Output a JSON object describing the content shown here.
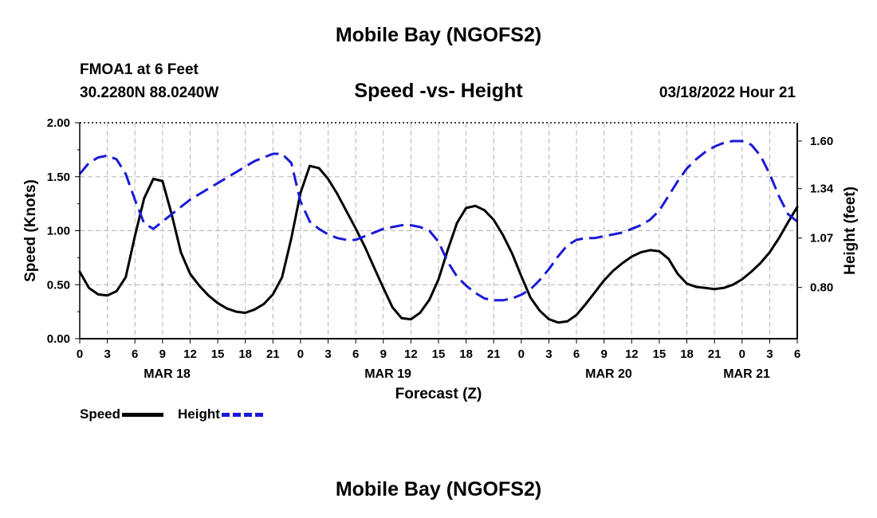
{
  "header": {
    "title": "Mobile Bay (NGOFS2)",
    "station": "FMOA1 at 6 Feet",
    "coords": "30.2280N  88.0240W",
    "subtitle": "Speed -vs- Height",
    "datetime": "03/18/2022 Hour 21"
  },
  "footer": {
    "title": "Mobile Bay (NGOFS2)"
  },
  "legend": {
    "speed_label": "Speed",
    "height_label": "Height",
    "speed_color": "#000000",
    "height_color": "#1a1ad6"
  },
  "chart_data": {
    "type": "line",
    "xlabel": "Forecast (Z)",
    "ylabel_left": "Speed (Knots)",
    "ylabel_right": "Height (feet)",
    "x_range_hours": [
      0,
      78
    ],
    "x_ticks": [
      "0",
      "3",
      "6",
      "9",
      "12",
      "15",
      "18",
      "21",
      "0",
      "3",
      "6",
      "9",
      "12",
      "15",
      "18",
      "21",
      "0",
      "3",
      "6",
      "9",
      "12",
      "15",
      "18",
      "21",
      "0",
      "3",
      "6"
    ],
    "day_labels": [
      {
        "label": "MAR 18",
        "hour": 9.5
      },
      {
        "label": "MAR 19",
        "hour": 33.5
      },
      {
        "label": "MAR 20",
        "hour": 57.5
      },
      {
        "label": "MAR 21",
        "hour": 72.5
      }
    ],
    "ylim_left": [
      0,
      2.0
    ],
    "y_ticks_left": [
      "0.00",
      "0.50",
      "1.00",
      "1.50",
      "2.00"
    ],
    "ylim_right": [
      0.52,
      1.7
    ],
    "y_ticks_right": [
      {
        "value": 0.8,
        "label": "0.80"
      },
      {
        "value": 1.07,
        "label": "1.07"
      },
      {
        "value": 1.34,
        "label": "1.34"
      },
      {
        "value": 1.6,
        "label": "1.60"
      }
    ],
    "grid": true,
    "series": [
      {
        "name": "Speed",
        "axis": "left",
        "color": "#000000",
        "dash": "solid",
        "x": [
          0,
          1,
          2,
          3,
          4,
          5,
          6,
          7,
          8,
          9,
          10,
          11,
          12,
          13,
          14,
          15,
          16,
          17,
          18,
          19,
          20,
          21,
          22,
          23,
          24,
          25,
          26,
          27,
          28,
          29,
          30,
          31,
          32,
          33,
          34,
          35,
          36,
          37,
          38,
          39,
          40,
          41,
          42,
          43,
          44,
          45,
          46,
          47,
          48,
          49,
          50,
          51,
          52,
          53,
          54,
          55,
          56,
          57,
          58,
          59,
          60,
          61,
          62,
          63,
          64,
          65,
          66,
          67,
          68,
          69,
          70,
          71,
          72,
          73,
          74,
          75,
          76,
          77,
          78
        ],
        "values": [
          0.62,
          0.47,
          0.41,
          0.4,
          0.44,
          0.57,
          0.95,
          1.3,
          1.48,
          1.46,
          1.15,
          0.8,
          0.6,
          0.49,
          0.4,
          0.33,
          0.28,
          0.25,
          0.24,
          0.27,
          0.32,
          0.41,
          0.57,
          0.93,
          1.35,
          1.6,
          1.58,
          1.48,
          1.34,
          1.18,
          1.02,
          0.85,
          0.66,
          0.47,
          0.29,
          0.19,
          0.18,
          0.24,
          0.36,
          0.55,
          0.82,
          1.07,
          1.21,
          1.23,
          1.19,
          1.1,
          0.96,
          0.79,
          0.58,
          0.38,
          0.26,
          0.18,
          0.15,
          0.16,
          0.22,
          0.32,
          0.43,
          0.54,
          0.63,
          0.7,
          0.76,
          0.8,
          0.82,
          0.81,
          0.74,
          0.6,
          0.51,
          0.48,
          0.47,
          0.46,
          0.47,
          0.5,
          0.55,
          0.62,
          0.7,
          0.8,
          0.93,
          1.08,
          1.22
        ]
      },
      {
        "name": "Height",
        "axis": "right",
        "color": "#1a1ad6",
        "dash": "dashed",
        "x": [
          0,
          1,
          2,
          3,
          4,
          5,
          6,
          7,
          8,
          9,
          10,
          11,
          12,
          13,
          14,
          15,
          16,
          17,
          18,
          19,
          20,
          21,
          22,
          23,
          24,
          25,
          26,
          27,
          28,
          29,
          30,
          31,
          32,
          33,
          34,
          35,
          36,
          37,
          38,
          39,
          40,
          41,
          42,
          43,
          44,
          45,
          46,
          47,
          48,
          49,
          50,
          51,
          52,
          53,
          54,
          55,
          56,
          57,
          58,
          59,
          60,
          61,
          62,
          63,
          64,
          65,
          66,
          67,
          68,
          69,
          70,
          71,
          72,
          73,
          74,
          75,
          76,
          77,
          78
        ],
        "values": [
          1.42,
          1.48,
          1.51,
          1.52,
          1.5,
          1.42,
          1.28,
          1.15,
          1.12,
          1.16,
          1.2,
          1.24,
          1.28,
          1.31,
          1.34,
          1.37,
          1.4,
          1.43,
          1.46,
          1.49,
          1.51,
          1.53,
          1.53,
          1.48,
          1.27,
          1.16,
          1.12,
          1.09,
          1.07,
          1.06,
          1.06,
          1.08,
          1.1,
          1.12,
          1.13,
          1.14,
          1.14,
          1.13,
          1.11,
          1.05,
          0.94,
          0.86,
          0.81,
          0.77,
          0.74,
          0.73,
          0.73,
          0.74,
          0.76,
          0.79,
          0.84,
          0.9,
          0.97,
          1.03,
          1.06,
          1.07,
          1.07,
          1.08,
          1.09,
          1.1,
          1.12,
          1.14,
          1.17,
          1.22,
          1.3,
          1.38,
          1.45,
          1.5,
          1.54,
          1.57,
          1.59,
          1.6,
          1.6,
          1.58,
          1.52,
          1.42,
          1.3,
          1.2,
          1.16
        ]
      }
    ]
  }
}
